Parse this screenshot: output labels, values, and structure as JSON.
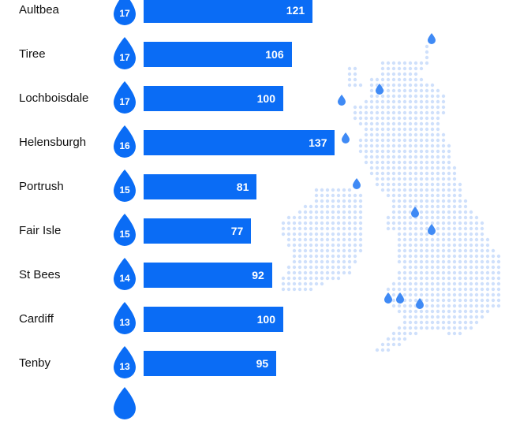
{
  "colors": {
    "bar": "#0a6cf5",
    "drop": "#0a6cf5",
    "map_dot": "#cfe0fb",
    "map_marker": "#3f8af5",
    "label": "#111111",
    "value_text": "#ffffff"
  },
  "chart_data": {
    "type": "bar",
    "orientation": "horizontal",
    "categories": [
      "Aultbea",
      "Tiree",
      "Lochboisdale",
      "Helensburgh",
      "Portrush",
      "Fair Isle",
      "St Bees",
      "Cardiff",
      "Tenby"
    ],
    "values": [
      121,
      106,
      100,
      137,
      81,
      77,
      92,
      100,
      95
    ],
    "drop_values": [
      17,
      17,
      17,
      16,
      15,
      15,
      14,
      13,
      13
    ],
    "data_labels": true,
    "grid": false,
    "decoration": "dotted map of Great Britain and Ireland with droplet markers"
  }
}
